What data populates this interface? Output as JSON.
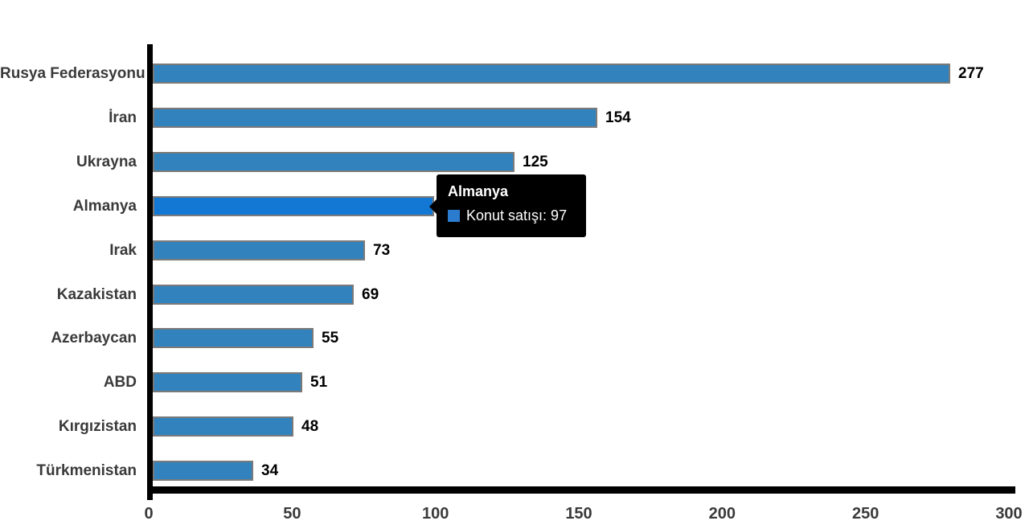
{
  "chart_data": {
    "type": "bar",
    "orientation": "horizontal",
    "title": "",
    "xlabel": "",
    "ylabel": "",
    "categories": [
      "Rusya Federasyonu",
      "İran",
      "Ukrayna",
      "Almanya",
      "Irak",
      "Kazakistan",
      "Azerbaycan",
      "ABD",
      "Kırgızistan",
      "Türkmenistan"
    ],
    "series": [
      {
        "name": "Konut satışı",
        "values": [
          277,
          154,
          125,
          97,
          73,
          69,
          55,
          51,
          48,
          34
        ]
      }
    ],
    "value_labels": [
      "277",
      "154",
      "125",
      "97",
      "73",
      "69",
      "55",
      "51",
      "48",
      "34"
    ],
    "xlim": [
      0,
      300
    ],
    "xticks": [
      "0",
      "50",
      "100",
      "150",
      "200",
      "250",
      "300"
    ],
    "grid": false,
    "legend_position": "none",
    "highlighted_index": 3,
    "colors": {
      "bar_fill": "#3182bd",
      "bar_fill_hover": "#1377d4",
      "bar_border": "#7a7a7a",
      "axis": "#000000",
      "category_label": "#3a3a3a",
      "value_label": "#000000",
      "tick_label": "#3a3a3a"
    }
  },
  "tooltip": {
    "title": "Almanya",
    "series_label": "Konut satışı",
    "value": "97",
    "text": "Konut satışı: 97",
    "background": "#000000",
    "text_color": "#ffffff",
    "swatch_color": "#2b7bce"
  }
}
